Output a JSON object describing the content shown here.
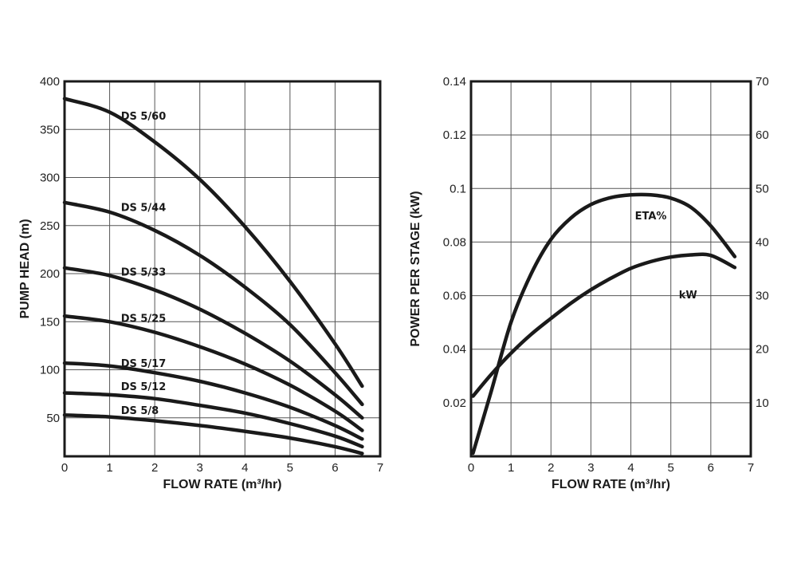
{
  "chart_data": [
    {
      "type": "line",
      "xlabel": "FLOW RATE (m³/hr)",
      "ylabel": "PUMP HEAD (m)",
      "xlim": [
        0,
        7
      ],
      "ylim": [
        10,
        400
      ],
      "x_ticks": [
        "0",
        "1",
        "2",
        "3",
        "4",
        "5",
        "6",
        "7"
      ],
      "y_ticks": [
        {
          "v": 50,
          "label": "50"
        },
        {
          "v": 100,
          "label": "100"
        },
        {
          "v": 150,
          "label": "150"
        },
        {
          "v": 200,
          "label": "200"
        },
        {
          "v": 250,
          "label": "250"
        },
        {
          "v": 300,
          "label": "300"
        },
        {
          "v": 350,
          "label": "350"
        },
        {
          "v": 400,
          "label": "400"
        }
      ],
      "grid": true,
      "series": [
        {
          "name": "DS 5/60",
          "label_pos": [
            1.25,
            360
          ],
          "x": [
            0,
            1,
            2,
            3,
            4,
            5,
            6,
            6.6
          ],
          "values": [
            382,
            368,
            337,
            298,
            249,
            192,
            127,
            83
          ]
        },
        {
          "name": "DS 5/44",
          "label_pos": [
            1.25,
            265
          ],
          "x": [
            0,
            1,
            2,
            3,
            4,
            5,
            6,
            6.6
          ],
          "values": [
            274,
            264,
            245,
            219,
            186,
            147,
            97,
            64
          ]
        },
        {
          "name": "DS 5/33",
          "label_pos": [
            1.25,
            198
          ],
          "x": [
            0,
            1,
            2,
            3,
            4,
            5,
            6,
            6.6
          ],
          "values": [
            206,
            198,
            183,
            163,
            138,
            109,
            74,
            50
          ]
        },
        {
          "name": "DS 5/25",
          "label_pos": [
            1.25,
            150
          ],
          "x": [
            0,
            1,
            2,
            3,
            4,
            5,
            6,
            6.6
          ],
          "values": [
            156,
            150,
            139,
            124,
            106,
            84,
            57,
            37
          ]
        },
        {
          "name": "DS   5/17",
          "label_pos": [
            1.25,
            103
          ],
          "x": [
            0,
            1,
            2,
            3,
            4,
            5,
            6,
            6.6
          ],
          "values": [
            107,
            104,
            97,
            88,
            76,
            61,
            42,
            28
          ]
        },
        {
          "name": "DS 5/12",
          "label_pos": [
            1.25,
            79
          ],
          "x": [
            0,
            1,
            2,
            3,
            4,
            5,
            6,
            6.6
          ],
          "values": [
            76,
            74,
            70,
            63,
            55,
            44,
            31,
            20
          ]
        },
        {
          "name": "DS 5/8",
          "label_pos": [
            1.25,
            54
          ],
          "x": [
            0,
            1,
            2,
            3,
            4,
            5,
            6,
            6.6
          ],
          "values": [
            53,
            51,
            47,
            42,
            36,
            29,
            20,
            13
          ]
        }
      ]
    },
    {
      "type": "line",
      "xlabel": "FLOW RATE (m³/hr)",
      "ylabel": "POWER PER STAGE (kW)",
      "xlim": [
        0,
        7
      ],
      "ylim": [
        0.0,
        0.14
      ],
      "y2lim": [
        0,
        70
      ],
      "x_ticks": [
        "0",
        "1",
        "2",
        "3",
        "4",
        "5",
        "6",
        "7"
      ],
      "y_ticks": [
        {
          "v": 0.02,
          "label": "0.02"
        },
        {
          "v": 0.04,
          "label": "0.04"
        },
        {
          "v": 0.06,
          "label": "0.06"
        },
        {
          "v": 0.08,
          "label": "0.08"
        },
        {
          "v": 0.1,
          "label": "0.1"
        },
        {
          "v": 0.12,
          "label": "0.12"
        },
        {
          "v": 0.14,
          "label": "0.14"
        }
      ],
      "y2_ticks": [
        {
          "v": 10,
          "label": "10"
        },
        {
          "v": 20,
          "label": "20"
        },
        {
          "v": 30,
          "label": "30"
        },
        {
          "v": 40,
          "label": "40"
        },
        {
          "v": 50,
          "label": "50"
        },
        {
          "v": 60,
          "label": "60"
        },
        {
          "v": 70,
          "label": "70"
        }
      ],
      "grid": true,
      "series": [
        {
          "name": "ETA%",
          "axis": "right",
          "label_pos": [
            4.1,
            0.0885
          ],
          "x": [
            0.05,
            0.5,
            1,
            1.5,
            2,
            2.5,
            3,
            3.5,
            4,
            4.5,
            5,
            5.5,
            6,
            6.6
          ],
          "values": [
            0.6,
            12,
            25,
            34,
            40.5,
            44.5,
            47,
            48.3,
            48.8,
            48.8,
            48.2,
            46.5,
            43,
            37.3
          ]
        },
        {
          "name": "kW",
          "axis": "left",
          "label_pos": [
            5.2,
            0.059
          ],
          "x": [
            0.05,
            0.5,
            1,
            1.5,
            2,
            2.5,
            3,
            3.5,
            4,
            4.5,
            5,
            5.5,
            6,
            6.6
          ],
          "values": [
            0.0225,
            0.0305,
            0.0385,
            0.0455,
            0.0515,
            0.0572,
            0.0622,
            0.0665,
            0.0702,
            0.0727,
            0.0744,
            0.0752,
            0.075,
            0.0705
          ]
        }
      ]
    }
  ]
}
